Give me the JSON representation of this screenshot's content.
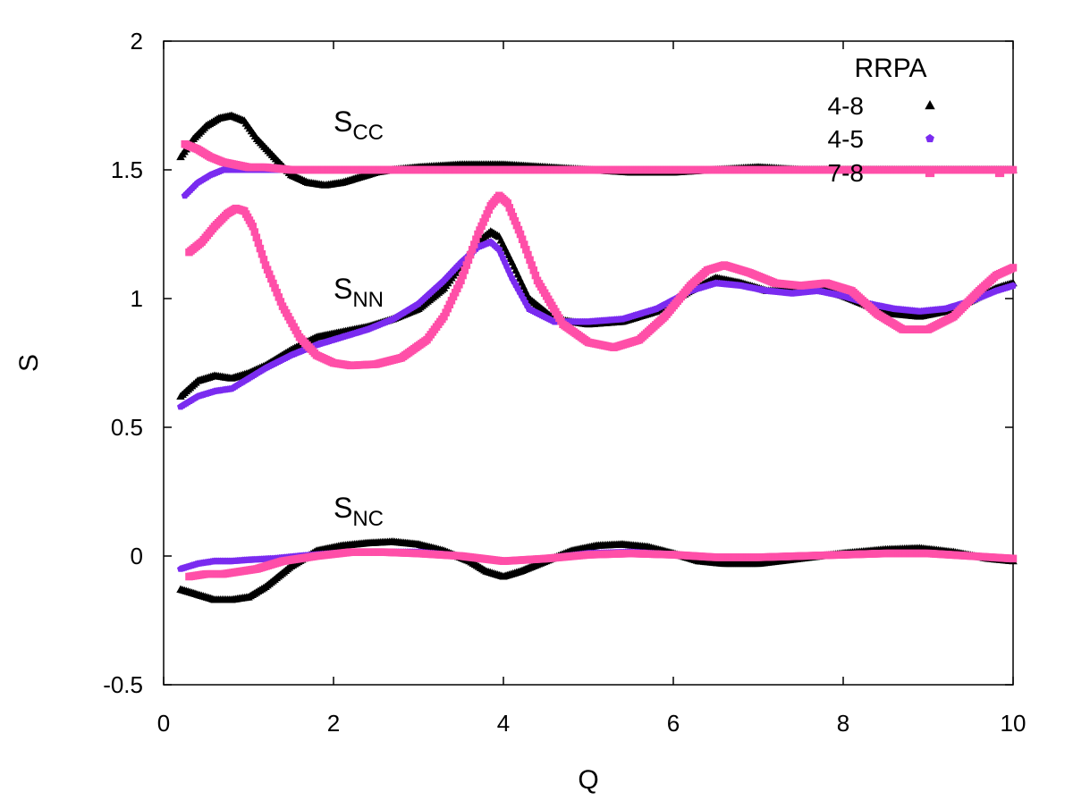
{
  "chart_data": {
    "type": "scatter",
    "xlabel": "Q",
    "ylabel": "S",
    "xlim": [
      0,
      10
    ],
    "ylim": [
      -0.5,
      2
    ],
    "xticks": [
      "0",
      "2",
      "4",
      "6",
      "8",
      "10"
    ],
    "yticks": [
      "-0.5",
      "0",
      "0.5",
      "1",
      "1.5",
      "2"
    ],
    "grid": false,
    "legend": {
      "title": "RRPA",
      "position": "top-right",
      "entries": [
        "4-8",
        "4-5",
        "7-8"
      ]
    },
    "annotations": [
      {
        "main": "S",
        "sub": "CC",
        "x": 2.0,
        "y": 1.65
      },
      {
        "main": "S",
        "sub": "NN",
        "x": 2.0,
        "y": 1.0
      },
      {
        "main": "S",
        "sub": "NC",
        "x": 2.0,
        "y": 0.15
      }
    ],
    "series": [
      {
        "name": "4-8",
        "color": "#000000",
        "marker": "triangle",
        "curves": {
          "S_CC": {
            "x": [
              0.2,
              0.35,
              0.5,
              0.65,
              0.8,
              0.95,
              1.1,
              1.3,
              1.5,
              1.7,
              1.9,
              2.1,
              2.3,
              2.5,
              2.7,
              3.0,
              3.5,
              4.0,
              4.5,
              5.0,
              5.5,
              6.0,
              6.5,
              7.0,
              7.5,
              8.0,
              8.5,
              9.0,
              9.5,
              10.0
            ],
            "y": [
              1.55,
              1.62,
              1.67,
              1.7,
              1.71,
              1.69,
              1.62,
              1.55,
              1.48,
              1.45,
              1.44,
              1.45,
              1.47,
              1.49,
              1.5,
              1.51,
              1.52,
              1.52,
              1.51,
              1.5,
              1.49,
              1.49,
              1.5,
              1.51,
              1.5,
              1.5,
              1.5,
              1.5,
              1.5,
              1.5
            ]
          },
          "S_NN": {
            "x": [
              0.2,
              0.4,
              0.6,
              0.8,
              1.0,
              1.2,
              1.5,
              1.8,
              2.1,
              2.4,
              2.7,
              3.0,
              3.3,
              3.5,
              3.7,
              3.85,
              3.95,
              4.1,
              4.3,
              4.6,
              5.0,
              5.4,
              5.8,
              6.2,
              6.5,
              6.8,
              7.1,
              7.4,
              7.7,
              8.0,
              8.3,
              8.6,
              8.9,
              9.2,
              9.5,
              9.8,
              10.0
            ],
            "y": [
              0.62,
              0.68,
              0.7,
              0.69,
              0.71,
              0.74,
              0.8,
              0.85,
              0.87,
              0.89,
              0.92,
              0.96,
              1.04,
              1.13,
              1.22,
              1.26,
              1.24,
              1.14,
              1.0,
              0.92,
              0.9,
              0.91,
              0.95,
              1.03,
              1.08,
              1.06,
              1.03,
              1.03,
              1.04,
              1.01,
              0.97,
              0.94,
              0.93,
              0.95,
              0.99,
              1.04,
              1.06
            ]
          },
          "S_NC": {
            "x": [
              0.2,
              0.4,
              0.6,
              0.8,
              1.0,
              1.2,
              1.5,
              1.8,
              2.1,
              2.4,
              2.7,
              3.0,
              3.3,
              3.6,
              3.8,
              4.0,
              4.2,
              4.5,
              4.8,
              5.1,
              5.4,
              5.7,
              6.0,
              6.3,
              6.6,
              7.0,
              7.5,
              8.0,
              8.5,
              8.9,
              9.3,
              9.7,
              10.0
            ],
            "y": [
              -0.13,
              -0.15,
              -0.17,
              -0.17,
              -0.16,
              -0.12,
              -0.04,
              0.02,
              0.04,
              0.05,
              0.055,
              0.045,
              0.02,
              -0.02,
              -0.06,
              -0.08,
              -0.06,
              -0.02,
              0.02,
              0.04,
              0.045,
              0.035,
              0.01,
              -0.02,
              -0.03,
              -0.03,
              -0.01,
              0.01,
              0.025,
              0.03,
              0.015,
              -0.01,
              -0.02
            ]
          }
        }
      },
      {
        "name": "4-5",
        "color": "#7a2bf0",
        "marker": "pentagon",
        "curves": {
          "S_CC": {
            "x": [
              0.25,
              0.4,
              0.55,
              0.7,
              0.85,
              1.0,
              1.2,
              1.5,
              2.0,
              3.0,
              4.0,
              5.0,
              6.0,
              7.0,
              8.0,
              9.0,
              10.0
            ],
            "y": [
              1.4,
              1.45,
              1.48,
              1.5,
              1.5,
              1.5,
              1.5,
              1.5,
              1.5,
              1.5,
              1.5,
              1.5,
              1.5,
              1.5,
              1.5,
              1.5,
              1.5
            ]
          },
          "S_NN": {
            "x": [
              0.2,
              0.4,
              0.6,
              0.8,
              1.0,
              1.2,
              1.5,
              1.8,
              2.1,
              2.4,
              2.7,
              3.0,
              3.3,
              3.5,
              3.7,
              3.85,
              3.95,
              4.1,
              4.3,
              4.6,
              5.0,
              5.4,
              5.8,
              6.2,
              6.5,
              6.8,
              7.1,
              7.4,
              7.7,
              8.0,
              8.3,
              8.6,
              8.9,
              9.2,
              9.5,
              9.8,
              10.0
            ],
            "y": [
              0.58,
              0.62,
              0.64,
              0.65,
              0.69,
              0.73,
              0.78,
              0.82,
              0.85,
              0.88,
              0.92,
              0.98,
              1.07,
              1.14,
              1.2,
              1.22,
              1.19,
              1.08,
              0.96,
              0.91,
              0.91,
              0.92,
              0.96,
              1.03,
              1.06,
              1.05,
              1.03,
              1.02,
              1.03,
              1.01,
              0.98,
              0.96,
              0.95,
              0.96,
              0.99,
              1.03,
              1.05
            ]
          },
          "S_NC": {
            "x": [
              0.2,
              0.4,
              0.6,
              0.8,
              1.0,
              1.3,
              1.6,
              2.0,
              2.5,
              3.0,
              3.5,
              4.0,
              4.5,
              5.0,
              5.5,
              6.0,
              6.5,
              7.0,
              7.5,
              8.0,
              8.5,
              9.0,
              9.5,
              10.0
            ],
            "y": [
              -0.05,
              -0.03,
              -0.02,
              -0.02,
              -0.015,
              -0.01,
              0.0,
              0.01,
              0.015,
              0.015,
              0.0,
              -0.02,
              -0.01,
              0.01,
              0.015,
              0.005,
              -0.005,
              -0.005,
              0.0,
              0.005,
              0.01,
              0.01,
              0.0,
              -0.01
            ]
          }
        }
      },
      {
        "name": "7-8",
        "color": "#ff4fa8",
        "marker": "square",
        "curves": {
          "S_CC": {
            "x": [
              0.25,
              0.4,
              0.55,
              0.7,
              0.85,
              1.0,
              1.2,
              1.5,
              2.0,
              3.0,
              4.0,
              5.0,
              6.0,
              7.0,
              8.0,
              9.0,
              10.0
            ],
            "y": [
              1.6,
              1.58,
              1.55,
              1.53,
              1.52,
              1.51,
              1.51,
              1.5,
              1.5,
              1.5,
              1.5,
              1.5,
              1.5,
              1.5,
              1.5,
              1.5,
              1.5
            ]
          },
          "S_NN": {
            "x": [
              0.3,
              0.45,
              0.6,
              0.75,
              0.85,
              0.95,
              1.05,
              1.2,
              1.4,
              1.6,
              1.8,
              2.0,
              2.2,
              2.5,
              2.8,
              3.1,
              3.3,
              3.5,
              3.7,
              3.85,
              3.95,
              4.05,
              4.2,
              4.4,
              4.7,
              5.0,
              5.3,
              5.6,
              5.9,
              6.2,
              6.4,
              6.6,
              6.9,
              7.2,
              7.5,
              7.8,
              8.1,
              8.4,
              8.7,
              9.0,
              9.3,
              9.6,
              9.8,
              10.0
            ],
            "y": [
              1.18,
              1.22,
              1.28,
              1.33,
              1.35,
              1.34,
              1.28,
              1.13,
              0.97,
              0.85,
              0.78,
              0.75,
              0.74,
              0.745,
              0.77,
              0.84,
              0.93,
              1.07,
              1.25,
              1.36,
              1.4,
              1.37,
              1.25,
              1.07,
              0.9,
              0.83,
              0.81,
              0.84,
              0.93,
              1.05,
              1.11,
              1.13,
              1.1,
              1.06,
              1.05,
              1.06,
              1.03,
              0.94,
              0.88,
              0.88,
              0.93,
              1.03,
              1.09,
              1.12
            ]
          },
          "S_NC": {
            "x": [
              0.3,
              0.5,
              0.7,
              0.9,
              1.1,
              1.4,
              1.8,
              2.2,
              2.6,
              3.0,
              3.5,
              4.0,
              4.5,
              5.0,
              5.5,
              6.0,
              6.5,
              7.0,
              7.5,
              8.0,
              8.5,
              9.0,
              9.5,
              10.0
            ],
            "y": [
              -0.08,
              -0.07,
              -0.07,
              -0.06,
              -0.05,
              -0.02,
              0.0,
              0.015,
              0.015,
              0.01,
              0.0,
              -0.02,
              -0.01,
              0.005,
              0.01,
              0.005,
              -0.005,
              -0.005,
              0.0,
              0.005,
              0.01,
              0.01,
              0.0,
              -0.01
            ]
          }
        }
      }
    ]
  }
}
